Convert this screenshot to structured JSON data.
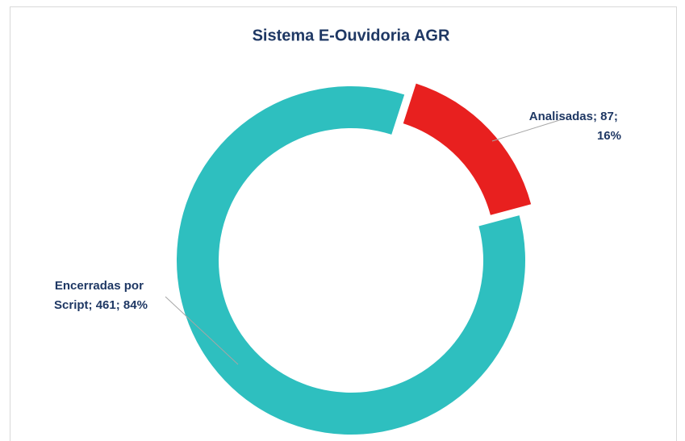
{
  "chart_data": {
    "type": "donut",
    "title": "Sistema E-Ouvidoria AGR",
    "categories": [
      "Encerradas por Script",
      "Analisadas"
    ],
    "values": [
      461,
      87
    ],
    "value_labels": [
      "Encerradas por Script; 461; 84%",
      "Analisadas; 87; 16%"
    ],
    "colors": [
      "#2ebfbf",
      "#e8201f"
    ]
  }
}
